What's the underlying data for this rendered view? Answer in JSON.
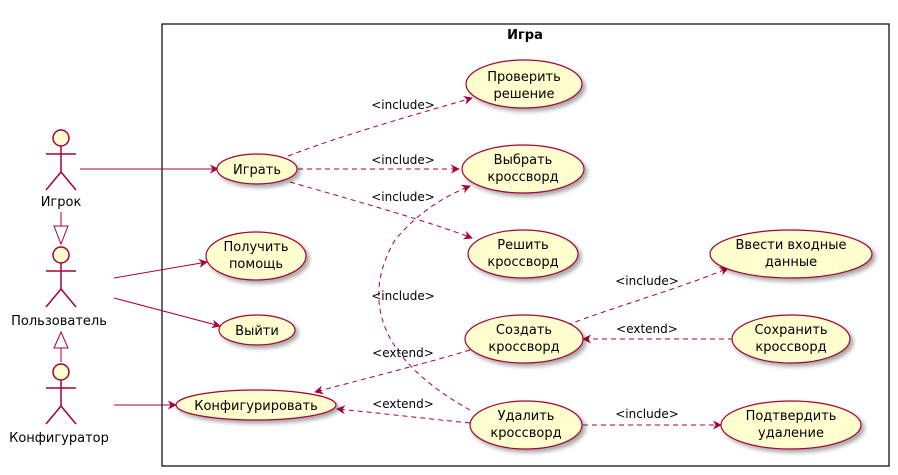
{
  "frame": {
    "title": "Игра"
  },
  "actors": {
    "player": "Игрок",
    "user": "Пользователь",
    "configurator": "Конфигуратор"
  },
  "usecases": {
    "check": [
      "Проверить",
      "решение"
    ],
    "play": [
      "Играть"
    ],
    "choose": [
      "Выбрать",
      "кроссворд"
    ],
    "solve": [
      "Решить",
      "кроссворд"
    ],
    "help": [
      "Получить",
      "помощь"
    ],
    "input": [
      "Ввести входные",
      "данные"
    ],
    "exit": [
      "Выйти"
    ],
    "create": [
      "Создать",
      "кроссворд"
    ],
    "save": [
      "Сохранить",
      "кроссворд"
    ],
    "configure": [
      "Конфигурировать"
    ],
    "delete": [
      "Удалить",
      "кроссворд"
    ],
    "confirm": [
      "Подтвердить",
      "удаление"
    ]
  },
  "labels": {
    "play_check": "<include>",
    "play_choose": "<include>",
    "play_solve": "<include>",
    "delete_choose": "<include>",
    "create_input": "<include>",
    "save_create": "<extend>",
    "create_configure": "<extend>",
    "delete_configure": "<extend>",
    "delete_confirm": "<include>"
  },
  "colors": {
    "line": "#a80036",
    "usecase_fill": "#fefece",
    "frame_border": "#000000"
  }
}
